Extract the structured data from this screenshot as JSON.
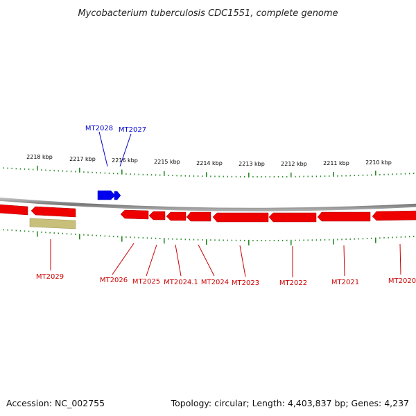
{
  "title": "Mycobacterium tuberculosis CDC1551, complete genome",
  "footer": {
    "accession": "Accession: NC_002755",
    "summary": "Topology: circular; Length: 4,403,837 bp; Genes: 4,237"
  },
  "colors": {
    "forward_gene": "#0000ee",
    "reverse_gene": "#ee0000",
    "other_feature": "#c8c07a",
    "ticks": "#2a8a2a",
    "backbone": "#888888",
    "forward_label": "#0000cc",
    "reverse_label": "#cc0000"
  },
  "scale": {
    "unit": "kbp",
    "labels": [
      "2218 kbp",
      "2217 kbp",
      "2216 kbp",
      "2215 kbp",
      "2214 kbp",
      "2213 kbp",
      "2212 kbp",
      "2211 kbp",
      "2210 kbp"
    ]
  },
  "genes": {
    "forward": [
      {
        "label": "MT2028"
      },
      {
        "label": "MT2027"
      }
    ],
    "reverse": [
      {
        "label": "MT2029"
      },
      {
        "label": "MT2026"
      },
      {
        "label": "MT2025"
      },
      {
        "label": "MT2024.1"
      },
      {
        "label": "MT2024"
      },
      {
        "label": "MT2023"
      },
      {
        "label": "MT2022"
      },
      {
        "label": "MT2021"
      },
      {
        "label": "MT2020"
      }
    ]
  }
}
